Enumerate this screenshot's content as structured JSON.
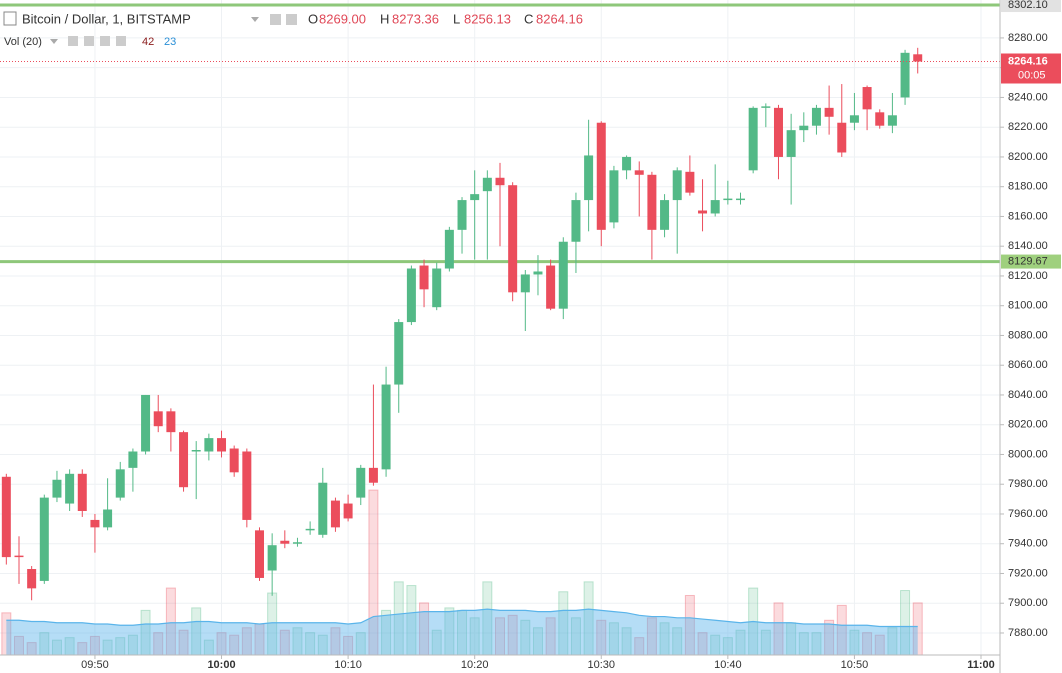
{
  "chart_data": {
    "type": "candlestick",
    "title": "Bitcoin / Dollar, 1, BITSTAMP",
    "indicator": "Vol (20)",
    "ohlc_letters": [
      "O",
      "H",
      "L",
      "C"
    ],
    "value_labels": {
      "open": "8269.00",
      "high": "8273.36",
      "low": "8256.13",
      "close": "8264.16"
    },
    "countdown": "00:05",
    "x": [
      "09:43",
      "09:44",
      "09:45",
      "09:46",
      "09:47",
      "09:48",
      "09:49",
      "09:50",
      "09:51",
      "09:52",
      "09:53",
      "09:54",
      "09:55",
      "09:56",
      "09:57",
      "09:58",
      "09:59",
      "10:00",
      "10:01",
      "10:02",
      "10:03",
      "10:04",
      "10:05",
      "10:06",
      "10:07",
      "10:08",
      "10:09",
      "10:10",
      "10:11",
      "10:12",
      "10:13",
      "10:14",
      "10:15",
      "10:16",
      "10:17",
      "10:18",
      "10:19",
      "10:20",
      "10:21",
      "10:22",
      "10:23",
      "10:24",
      "10:25",
      "10:26",
      "10:27",
      "10:28",
      "10:29",
      "10:30",
      "10:31",
      "10:32",
      "10:33",
      "10:34",
      "10:35",
      "10:36",
      "10:37",
      "10:38",
      "10:39",
      "10:40",
      "10:41",
      "10:42",
      "10:43",
      "10:44",
      "10:45",
      "10:46",
      "10:47",
      "10:48",
      "10:49",
      "10:50",
      "10:51",
      "10:52",
      "10:53",
      "10:54",
      "10:55"
    ],
    "open": [
      7985,
      7932,
      7923,
      7915,
      7971,
      7967,
      7987,
      7956,
      7951,
      7971,
      7991,
      8002,
      8029,
      8029,
      8015,
      8002,
      8002,
      8011,
      8004,
      8002,
      7949,
      7922,
      7942,
      7940,
      7949,
      7946,
      7969,
      7967,
      7971,
      7991,
      7990,
      8047,
      8089,
      8127,
      8099,
      8125,
      8151,
      8171,
      8177,
      8186,
      8181,
      8109,
      8121,
      8127,
      8098,
      8143,
      8171,
      8223,
      8156,
      8191,
      8191,
      8188,
      8151,
      8171,
      8190,
      8164,
      8162,
      8171,
      8171,
      8191,
      8233,
      8233,
      8200,
      8218,
      8221,
      8233,
      8223,
      8223,
      8247,
      8230,
      8221,
      8240,
      8269
    ],
    "high": [
      7987,
      7945,
      7925,
      7973,
      7989,
      7990,
      7990,
      7960,
      7984,
      7995,
      8004,
      8040,
      8040,
      8031,
      8016,
      8009,
      8014,
      8016,
      8006,
      8004,
      7951,
      7947,
      7949,
      7944,
      7955,
      7991,
      7971,
      7973,
      7993,
      8047,
      8059,
      8091,
      8127,
      8131,
      8129,
      8153,
      8173,
      8191,
      8191,
      8196,
      8183,
      8124,
      8134,
      8131,
      8146,
      8176,
      8225,
      8224,
      8194,
      8201,
      8197,
      8190,
      8175,
      8193,
      8201,
      8185,
      8195,
      8184,
      8176,
      8234,
      8236,
      8235,
      8229,
      8230,
      8235,
      8248,
      8249,
      8243,
      8248,
      8232,
      8243,
      8272,
      8273.36
    ],
    "low": [
      7926,
      7913,
      7902,
      7913,
      7968,
      7962,
      7958,
      7934,
      7949,
      7969,
      7975,
      8000,
      8015,
      8002,
      7975,
      7970,
      7996,
      7998,
      7985,
      7951,
      7915,
      7905,
      7937,
      7938,
      7946,
      7944,
      7948,
      7955,
      7966,
      7979,
      7985,
      8028,
      8087,
      8099,
      8097,
      8123,
      8135,
      8131,
      8131,
      8140,
      8103,
      8083,
      8107,
      8097,
      8091,
      8122,
      8150,
      8140,
      8152,
      8185,
      8160,
      8131,
      8146,
      8135,
      8174,
      8150,
      8160,
      8168,
      8168,
      8189,
      8220,
      8185,
      8168,
      8210,
      8215,
      8215,
      8200,
      8218,
      8218,
      8219,
      8216,
      8235,
      8256.13
    ],
    "close": [
      7931,
      7931,
      7910,
      7971,
      7983,
      7987,
      7962,
      7951,
      7963,
      7990,
      8002,
      8040,
      8019,
      8015,
      7978,
      8003,
      8011,
      8002,
      7988,
      7956,
      7917,
      7939,
      7940,
      7941,
      7950,
      7981,
      7951,
      7957,
      7991,
      7981,
      8047,
      8089,
      8125,
      8111,
      8125,
      8151,
      8171,
      8175,
      8186,
      8181,
      8109,
      8121,
      8123,
      8098,
      8143,
      8171,
      8201,
      8151,
      8191,
      8200,
      8188,
      8151,
      8171,
      8191,
      8176,
      8162,
      8171,
      8172,
      8172,
      8233,
      8234,
      8200,
      8218,
      8221,
      8233,
      8227,
      8203,
      8228,
      8232,
      8221,
      8228,
      8270,
      8264.16
    ],
    "volume": [
      34,
      15,
      10,
      18,
      12,
      14,
      10,
      15,
      12,
      14,
      16,
      36,
      18,
      54,
      20,
      38,
      12,
      18,
      16,
      22,
      25,
      50,
      20,
      22,
      18,
      16,
      22,
      15,
      18,
      133,
      36,
      59,
      56,
      42,
      20,
      38,
      36,
      30,
      59,
      30,
      32,
      28,
      22,
      30,
      51,
      30,
      59,
      28,
      26,
      22,
      14,
      30,
      26,
      22,
      48,
      18,
      16,
      14,
      20,
      54,
      20,
      42,
      26,
      18,
      18,
      28,
      40,
      20,
      18,
      16,
      22,
      52,
      42
    ],
    "volume_ma": [
      28,
      28,
      27,
      27,
      26,
      26,
      26,
      25,
      25,
      24,
      24,
      25,
      25,
      26,
      26,
      27,
      27,
      26,
      26,
      26,
      25,
      26,
      26,
      26,
      26,
      26,
      26,
      25,
      26,
      31,
      32,
      33,
      34,
      35,
      35,
      35,
      36,
      36,
      37,
      36,
      36,
      36,
      35,
      35,
      36,
      36,
      37,
      36,
      35,
      34,
      32,
      31,
      31,
      30,
      30,
      29,
      28,
      27,
      26,
      27,
      26,
      26,
      26,
      25,
      25,
      25,
      24,
      24,
      24,
      23,
      23,
      23,
      23
    ],
    "up_color": "#53b987",
    "down_color": "#eb4d5c",
    "ma_color": "#5ab4ea",
    "levels": [
      {
        "value": 8302.1,
        "label": "8302.10"
      },
      {
        "value": 8129.67,
        "label": "8129.67"
      }
    ],
    "level_color": "#8ec77a",
    "grid": true,
    "xlim": [
      "09:42:30",
      "11:01:30"
    ],
    "xticks": [
      "09:50",
      "10:00",
      "10:10",
      "10:20",
      "10:30",
      "10:40",
      "10:50",
      "11:00"
    ],
    "ylim": [
      7865.2,
      8305.5
    ],
    "yticks": [
      {
        "value": 7880,
        "label": "7880.00"
      },
      {
        "value": 7900,
        "label": "7900.00"
      },
      {
        "value": 7920,
        "label": "7920.00"
      },
      {
        "value": 7940,
        "label": "7940.00"
      },
      {
        "value": 7960,
        "label": "7960.00"
      },
      {
        "value": 7980,
        "label": "7980.00"
      },
      {
        "value": 8000,
        "label": "8000.00"
      },
      {
        "value": 8020,
        "label": "8020.00"
      },
      {
        "value": 8040,
        "label": "8040.00"
      },
      {
        "value": 8060,
        "label": "8060.00"
      },
      {
        "value": 8080,
        "label": "8080.00"
      },
      {
        "value": 8100,
        "label": "8100.00"
      },
      {
        "value": 8120,
        "label": "8120.00"
      },
      {
        "value": 8140,
        "label": "8140.00"
      },
      {
        "value": 8160,
        "label": "8160.00"
      },
      {
        "value": 8180,
        "label": "8180.00"
      },
      {
        "value": 8200,
        "label": "8200.00"
      },
      {
        "value": 8220,
        "label": "8220.00"
      },
      {
        "value": 8240,
        "label": "8240.00"
      },
      {
        "value": 8260,
        "label": "8260.00"
      },
      {
        "value": 8280,
        "label": "8280.00"
      }
    ]
  }
}
